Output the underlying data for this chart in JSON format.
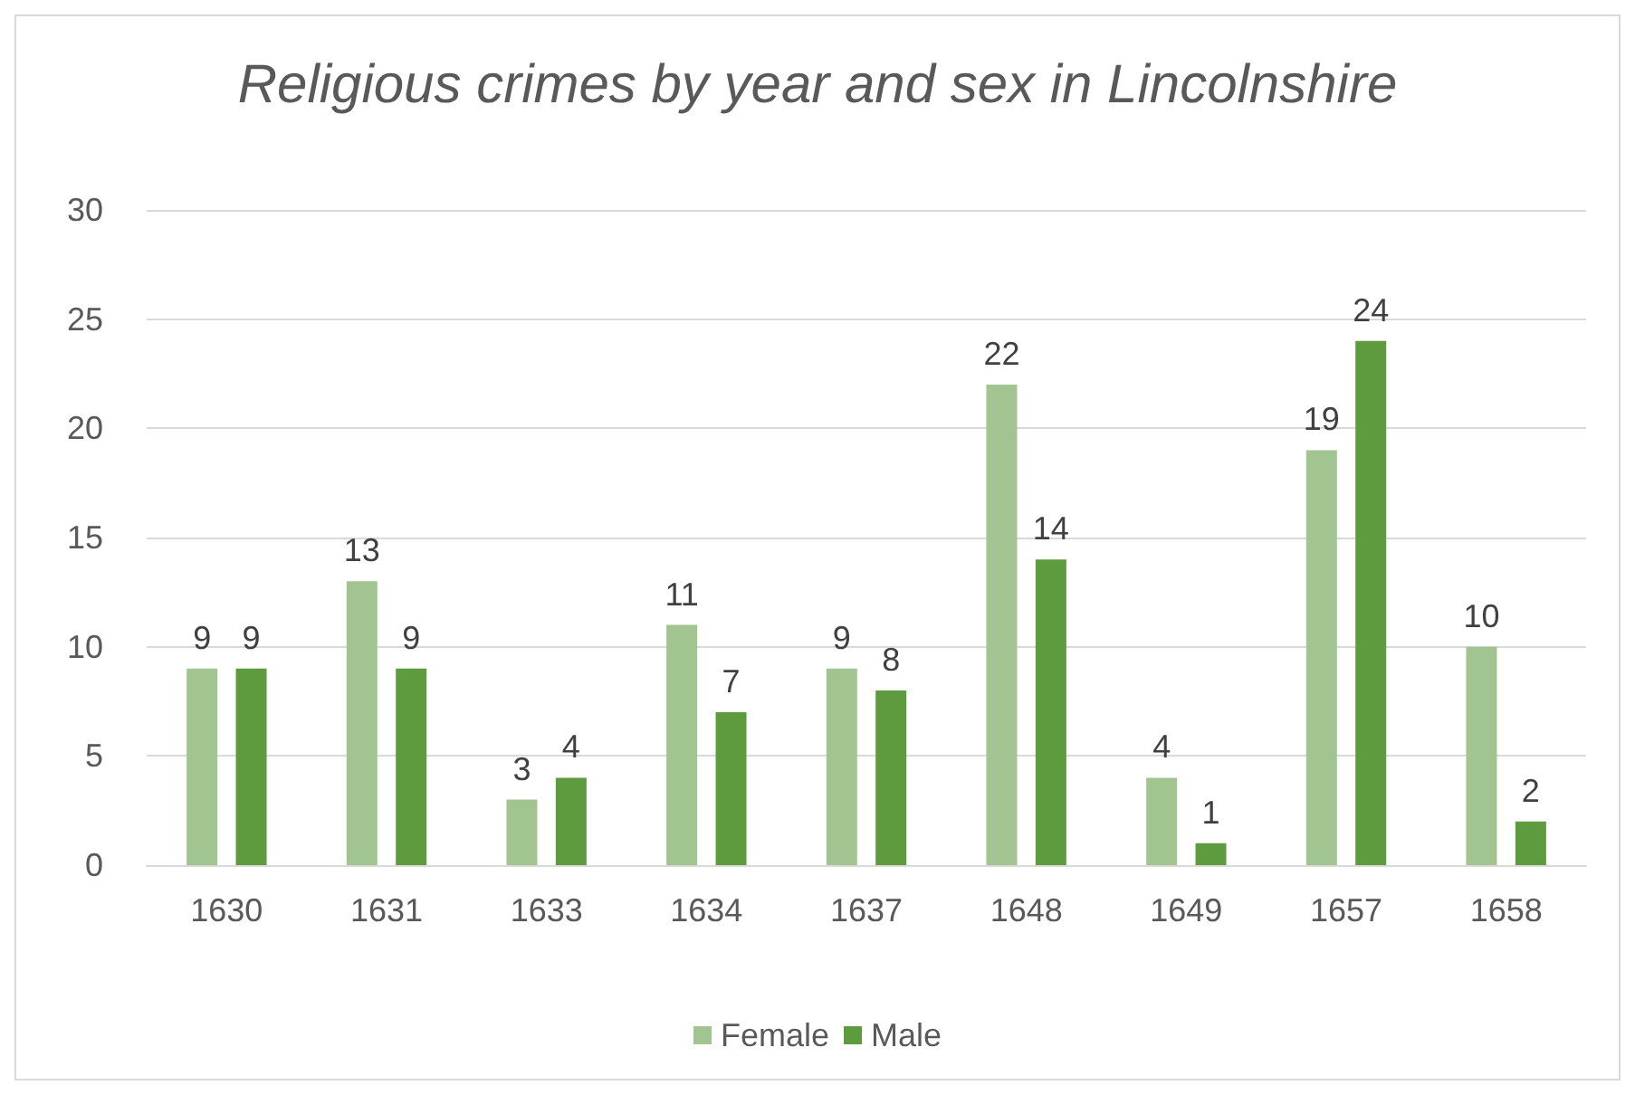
{
  "chart_data": {
    "type": "bar",
    "title": "Religious crimes by year and sex in Lincolnshire",
    "categories": [
      "1630",
      "1631",
      "1633",
      "1634",
      "1637",
      "1648",
      "1649",
      "1657",
      "1658"
    ],
    "series": [
      {
        "name": "Female",
        "color": "#a1c490",
        "values": [
          9,
          13,
          3,
          11,
          9,
          22,
          4,
          19,
          10
        ]
      },
      {
        "name": "Male",
        "color": "#5e9a3e",
        "values": [
          9,
          9,
          4,
          7,
          8,
          14,
          1,
          24,
          2
        ]
      }
    ],
    "ylim": [
      0,
      30
    ],
    "yticks": [
      0,
      5,
      10,
      15,
      20,
      25,
      30
    ],
    "grid": "y",
    "legend": "bottom",
    "data_labels": true
  }
}
